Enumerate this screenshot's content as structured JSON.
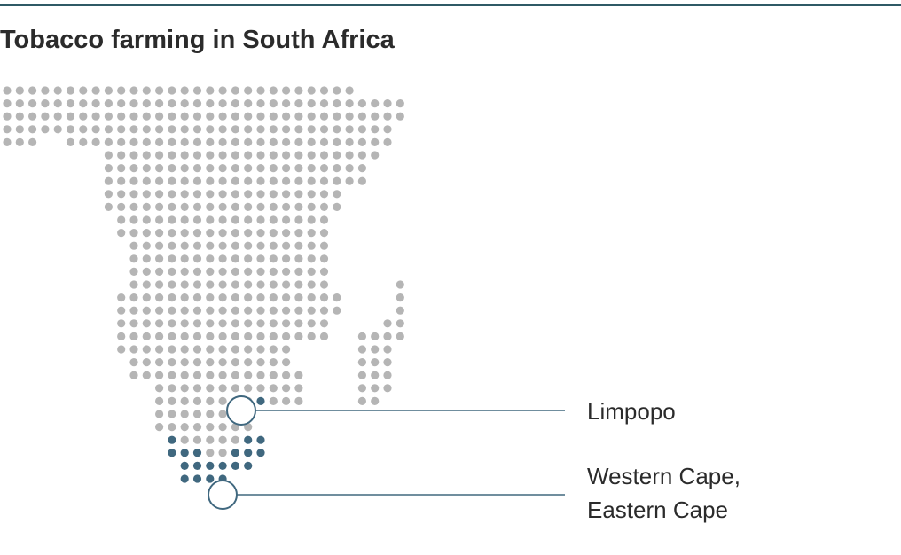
{
  "header": {
    "title": "Tobacco farming in South Africa"
  },
  "callouts": [
    {
      "lines": [
        "Limpopo"
      ]
    },
    {
      "lines": [
        "Western Cape,",
        "Eastern Cape"
      ]
    }
  ]
}
